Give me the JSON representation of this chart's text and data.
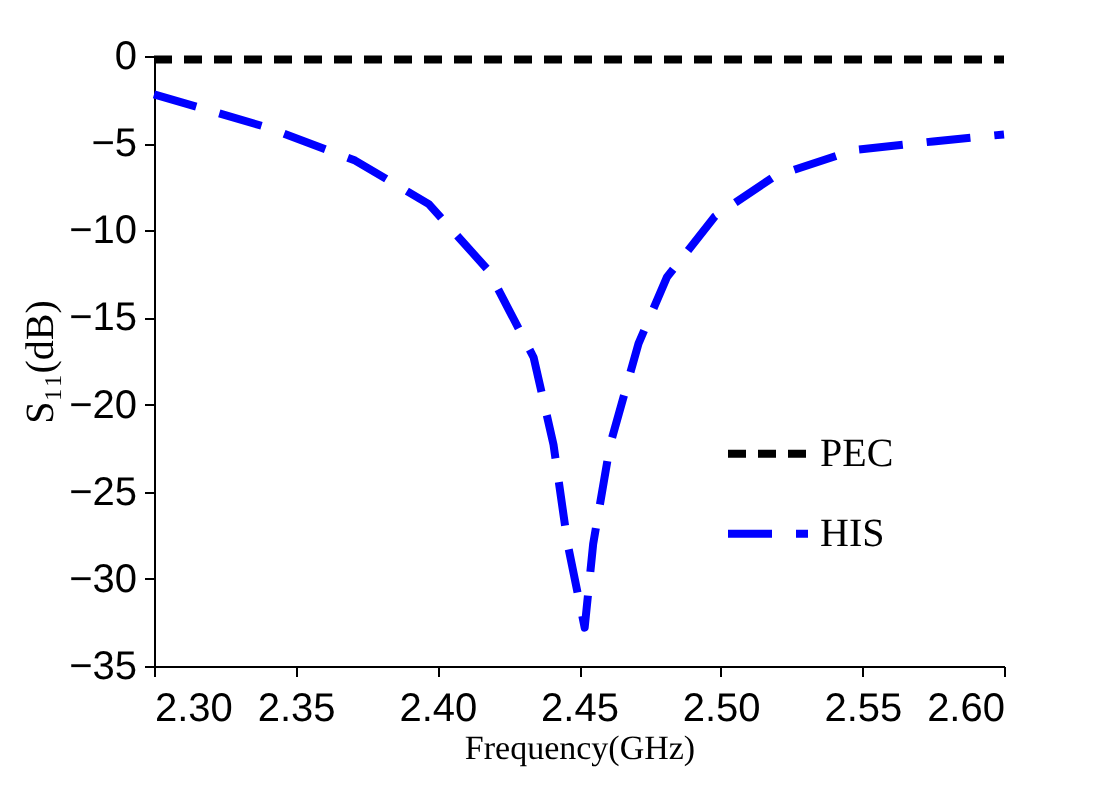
{
  "chart_data": {
    "type": "line",
    "xlabel": "Frequency(GHz)",
    "ylabel": "S₁₁(dB)",
    "xlim": [
      2.3,
      2.6
    ],
    "xticks": [
      {
        "value": 2.3,
        "label": "2.30"
      },
      2.35,
      {
        "value": 2.4,
        "label": "2.40"
      },
      2.45,
      {
        "value": 2.5,
        "label": "2.50"
      },
      2.55,
      {
        "value": 2.6,
        "label": "2.60"
      }
    ],
    "ylim": [
      -35,
      0
    ],
    "yticks": [
      -35,
      -30,
      -25,
      -20,
      -15,
      -10,
      -5,
      0
    ],
    "grid": false,
    "legend": "right",
    "marker": "none",
    "series": [
      {
        "name": "PEC",
        "color": "#000000",
        "line_style": "dashed",
        "x": [
          2.3,
          2.6
        ],
        "values": [
          -0.2,
          -0.2
        ]
      },
      {
        "name": "HIS",
        "color": "#0000ff",
        "line_style": "dashed",
        "x": [
          2.3,
          2.34,
          2.371,
          2.397,
          2.418,
          2.434,
          2.441,
          2.446,
          2.452,
          2.455,
          2.461,
          2.471,
          2.481,
          2.498,
          2.519,
          2.547,
          2.575,
          2.6
        ],
        "values": [
          -2.2,
          -4.1,
          -6.0,
          -8.5,
          -12.3,
          -17.3,
          -22.3,
          -28.0,
          -32.8,
          -28.0,
          -22.3,
          -16.5,
          -12.7,
          -9.2,
          -6.9,
          -5.4,
          -4.9,
          -4.5
        ]
      }
    ]
  }
}
